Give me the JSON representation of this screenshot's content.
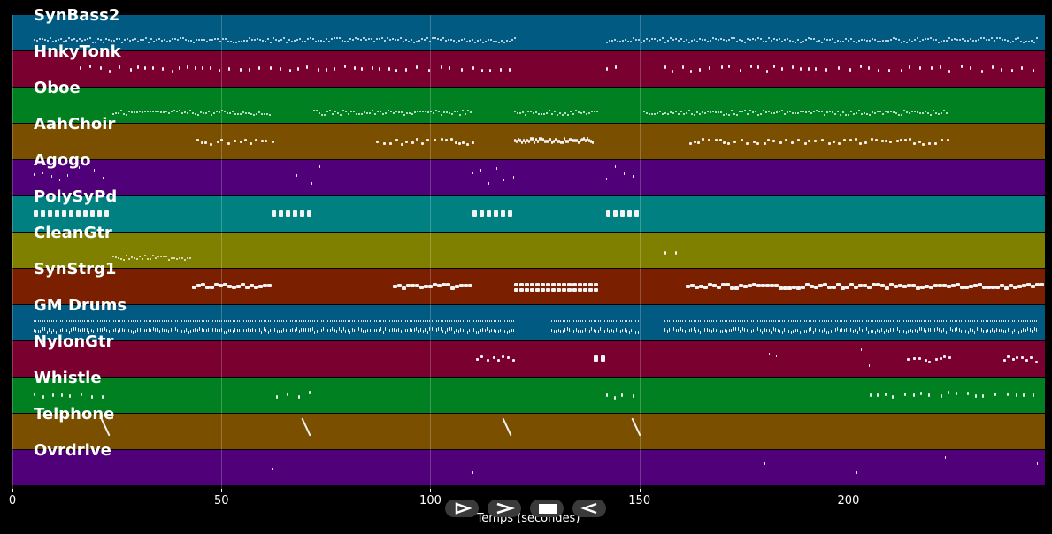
{
  "chart_data": {
    "type": "piano-roll",
    "xlabel": "Temps (secondes)",
    "xlim": [
      0,
      247
    ],
    "xticks": [
      0,
      50,
      100,
      150,
      200
    ],
    "tracks": [
      {
        "name": "SynBass2",
        "color": "#005a82",
        "segments": [
          [
            5,
            120,
            "dense-thin"
          ],
          [
            142,
            245,
            "dense-thin"
          ]
        ]
      },
      {
        "name": "HnkyTonk",
        "color": "#7a0030",
        "segments": [
          [
            16,
            120,
            "sparse"
          ],
          [
            142,
            146,
            "sparse"
          ],
          [
            156,
            244,
            "sparse"
          ]
        ]
      },
      {
        "name": "Oboe",
        "color": "#008020",
        "segments": [
          [
            24,
            62,
            "dense-thin"
          ],
          [
            72,
            110,
            "dense-thin"
          ],
          [
            120,
            140,
            "dense-thin"
          ],
          [
            151,
            224,
            "dense-thin"
          ]
        ]
      },
      {
        "name": "AahChoir",
        "color": "#7a5000",
        "segments": [
          [
            44,
            62,
            "medium"
          ],
          [
            87,
            110,
            "medium"
          ],
          [
            120,
            139,
            "dense-thick"
          ],
          [
            162,
            224,
            "medium"
          ]
        ]
      },
      {
        "name": "Agogo",
        "color": "#500078",
        "segments": [
          [
            5,
            23,
            "dots"
          ],
          [
            68,
            74,
            "dots"
          ],
          [
            110,
            120,
            "dots"
          ],
          [
            142,
            150,
            "dots"
          ]
        ]
      },
      {
        "name": "PolySyPd",
        "color": "#008080",
        "segments": [
          [
            5,
            23,
            "blocks"
          ],
          [
            62,
            71,
            "blocks"
          ],
          [
            110,
            119,
            "blocks"
          ],
          [
            142,
            150,
            "blocks"
          ]
        ]
      },
      {
        "name": "CleanGtr",
        "color": "#808000",
        "segments": [
          [
            24,
            43,
            "dense-thin"
          ],
          [
            156,
            160,
            "sparse"
          ]
        ]
      },
      {
        "name": "SynStrg1",
        "color": "#7a2000",
        "segments": [
          [
            43,
            62,
            "thick"
          ],
          [
            91,
            110,
            "thick"
          ],
          [
            120,
            140,
            "chord"
          ],
          [
            161,
            246,
            "thick"
          ]
        ]
      },
      {
        "name": "GM Drums",
        "color": "#005a82",
        "segments": [
          [
            5,
            120,
            "drums"
          ],
          [
            129,
            150,
            "drums"
          ],
          [
            156,
            245,
            "drums"
          ]
        ]
      },
      {
        "name": "NylonGtr",
        "color": "#7a0030",
        "segments": [
          [
            111,
            120,
            "medium"
          ],
          [
            139,
            141,
            "blocks"
          ],
          [
            181,
            183,
            "dots"
          ],
          [
            203,
            205,
            "dots"
          ],
          [
            214,
            225,
            "medium"
          ],
          [
            237,
            245,
            "medium"
          ]
        ]
      },
      {
        "name": "Whistle",
        "color": "#008020",
        "segments": [
          [
            5,
            22,
            "sparse"
          ],
          [
            63,
            71,
            "sparse"
          ],
          [
            142,
            149,
            "sparse"
          ],
          [
            205,
            245,
            "sparse"
          ]
        ]
      },
      {
        "name": "Telphone",
        "color": "#7a5000",
        "segments": [
          [
            22,
            24,
            "slash"
          ],
          [
            70,
            72,
            "slash"
          ],
          [
            118,
            120,
            "slash"
          ],
          [
            149,
            151,
            "slash"
          ]
        ]
      },
      {
        "name": "Ovrdrive",
        "color": "#500078",
        "segments": [
          [
            62,
            63,
            "dots"
          ],
          [
            110,
            111,
            "dots"
          ],
          [
            180,
            181,
            "dots"
          ],
          [
            202,
            203,
            "dots"
          ],
          [
            223,
            224,
            "dots"
          ],
          [
            245,
            246,
            "dots"
          ]
        ]
      }
    ]
  },
  "controls": [
    {
      "icon": "play-icon"
    },
    {
      "icon": "forward-icon"
    },
    {
      "icon": "stop-icon"
    },
    {
      "icon": "rewind-icon"
    }
  ]
}
